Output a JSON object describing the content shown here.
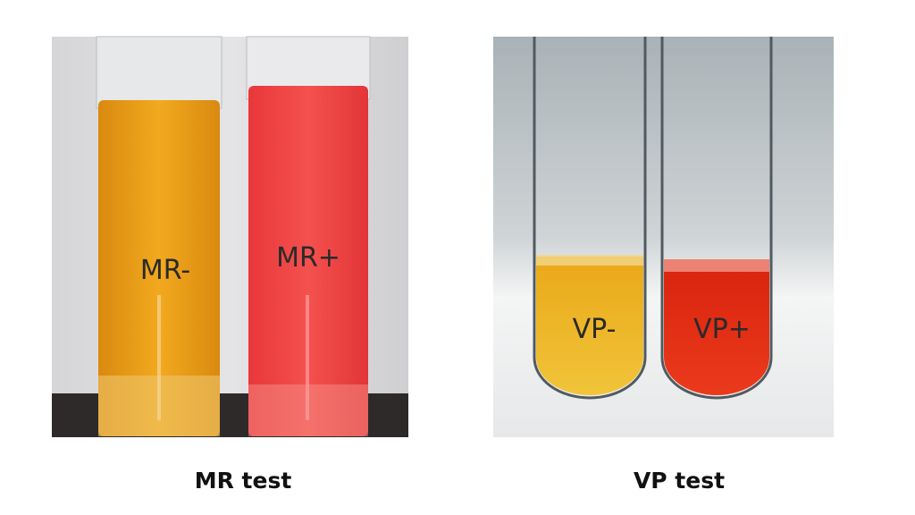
{
  "panels": [
    {
      "caption": "MR test",
      "tubes": [
        {
          "label": "MR-"
        },
        {
          "label": "MR+"
        }
      ]
    },
    {
      "caption": "VP test",
      "tubes": [
        {
          "label": "VP-"
        },
        {
          "label": "VP+"
        }
      ]
    }
  ]
}
